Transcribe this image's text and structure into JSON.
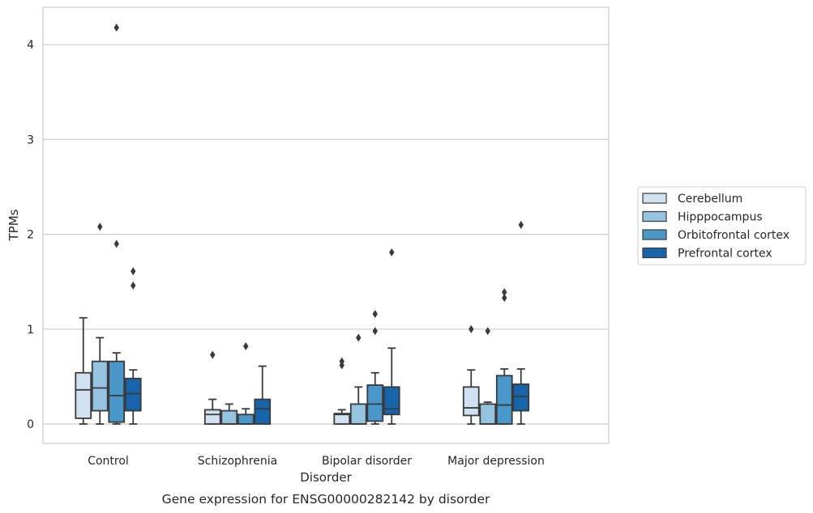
{
  "chart_data": {
    "type": "box",
    "caption": "Gene expression for ENSG00000282142 by disorder",
    "xlabel": "Disorder",
    "ylabel": "TPMs",
    "ylim": [
      -0.2,
      4.4
    ],
    "yticks": [
      0,
      1,
      2,
      3,
      4
    ],
    "grid": "horizontal",
    "legend_position": "right",
    "categories": [
      "Control",
      "Schizophrenia",
      "Bipolar disorder",
      "Major depression"
    ],
    "series": [
      {
        "name": "Cerebellum",
        "color": "#d0e1f2",
        "boxes": [
          {
            "whislo": 0.0,
            "q1": 0.06,
            "med": 0.36,
            "q3": 0.54,
            "whishi": 1.12,
            "fliers": []
          },
          {
            "whislo": 0.0,
            "q1": 0.0,
            "med": 0.1,
            "q3": 0.15,
            "whishi": 0.26,
            "fliers": [
              0.73
            ]
          },
          {
            "whislo": 0.0,
            "q1": 0.0,
            "med": 0.1,
            "q3": 0.11,
            "whishi": 0.15,
            "fliers": [
              0.62,
              0.66
            ]
          },
          {
            "whislo": 0.0,
            "q1": 0.09,
            "med": 0.17,
            "q3": 0.39,
            "whishi": 0.57,
            "fliers": [
              1.0
            ]
          }
        ]
      },
      {
        "name": "Hipppocampus",
        "color": "#94c4df",
        "boxes": [
          {
            "whislo": 0.0,
            "q1": 0.14,
            "med": 0.38,
            "q3": 0.66,
            "whishi": 0.91,
            "fliers": [
              2.08
            ]
          },
          {
            "whislo": 0.0,
            "q1": 0.0,
            "med": 0.0,
            "q3": 0.14,
            "whishi": 0.21,
            "fliers": []
          },
          {
            "whislo": 0.0,
            "q1": 0.0,
            "med": 0.0,
            "q3": 0.21,
            "whishi": 0.39,
            "fliers": [
              0.91
            ]
          },
          {
            "whislo": 0.0,
            "q1": 0.0,
            "med": 0.0,
            "q3": 0.21,
            "whishi": 0.23,
            "fliers": [
              0.98
            ]
          }
        ]
      },
      {
        "name": "Orbitofrontal cortex",
        "color": "#4a98c9",
        "boxes": [
          {
            "whislo": 0.0,
            "q1": 0.02,
            "med": 0.3,
            "q3": 0.66,
            "whishi": 0.75,
            "fliers": [
              1.9,
              4.18
            ]
          },
          {
            "whislo": 0.0,
            "q1": 0.0,
            "med": 0.0,
            "q3": 0.1,
            "whishi": 0.16,
            "fliers": [
              0.82
            ]
          },
          {
            "whislo": 0.0,
            "q1": 0.03,
            "med": 0.21,
            "q3": 0.41,
            "whishi": 0.54,
            "fliers": [
              0.98,
              1.16
            ]
          },
          {
            "whislo": 0.0,
            "q1": 0.0,
            "med": 0.2,
            "q3": 0.51,
            "whishi": 0.58,
            "fliers": [
              1.33,
              1.39
            ]
          }
        ]
      },
      {
        "name": "Prefrontal cortex",
        "color": "#1764ab",
        "boxes": [
          {
            "whislo": 0.0,
            "q1": 0.14,
            "med": 0.32,
            "q3": 0.48,
            "whishi": 0.57,
            "fliers": [
              1.46,
              1.61
            ]
          },
          {
            "whislo": 0.0,
            "q1": 0.0,
            "med": 0.16,
            "q3": 0.26,
            "whishi": 0.61,
            "fliers": []
          },
          {
            "whislo": 0.0,
            "q1": 0.1,
            "med": 0.16,
            "q3": 0.39,
            "whishi": 0.8,
            "fliers": [
              1.81
            ]
          },
          {
            "whislo": 0.0,
            "q1": 0.14,
            "med": 0.29,
            "q3": 0.42,
            "whishi": 0.58,
            "fliers": [
              2.1
            ]
          }
        ]
      }
    ]
  }
}
